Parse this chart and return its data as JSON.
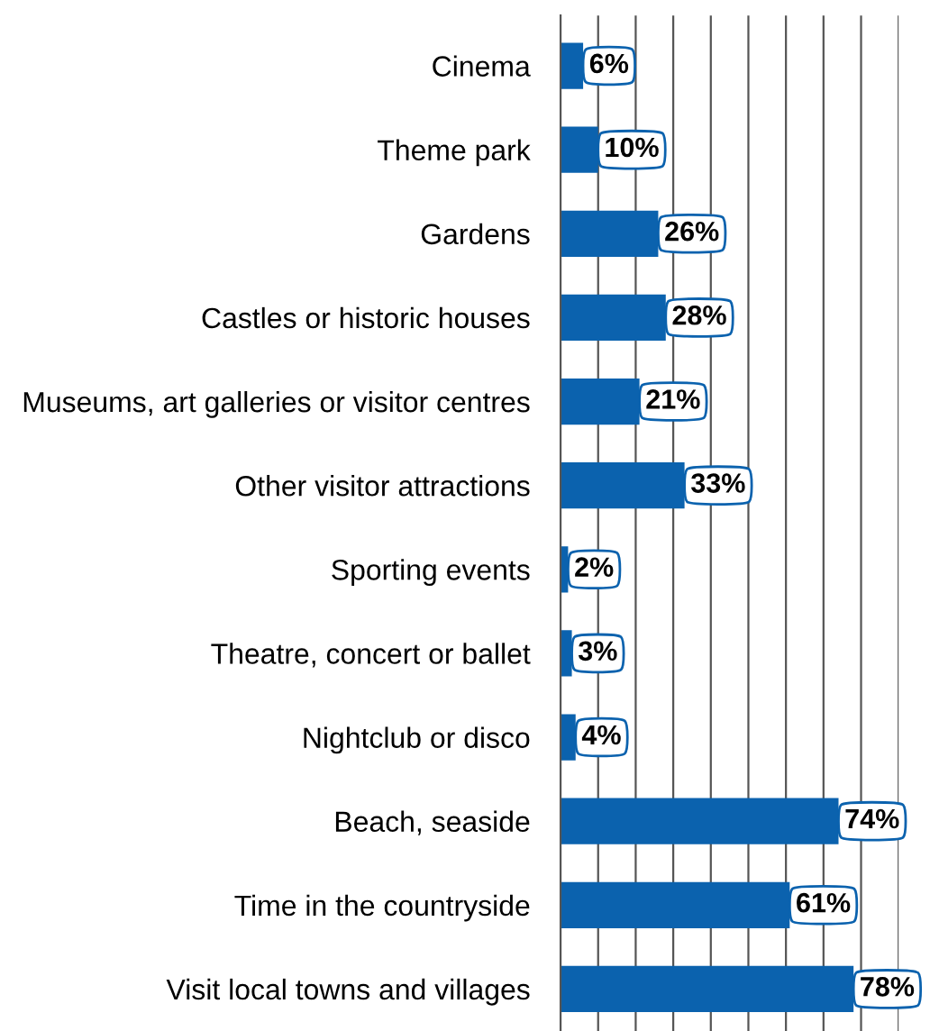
{
  "chart_data": {
    "type": "bar",
    "orientation": "horizontal",
    "categories": [
      "Cinema",
      "Theme park",
      "Gardens",
      "Castles or historic houses",
      "Museums, art galleries or visitor centres",
      "Other visitor attractions",
      "Sporting events",
      "Theatre, concert or ballet",
      "Nightclub or disco",
      "Beach, seaside",
      "Time in the countryside",
      "Visit local towns and villages"
    ],
    "values": [
      6,
      10,
      26,
      28,
      21,
      33,
      2,
      3,
      4,
      74,
      61,
      78
    ],
    "value_labels": [
      "6%",
      "10%",
      "26%",
      "28%",
      "21%",
      "33%",
      "2%",
      "3%",
      "4%",
      "74%",
      "61%",
      "78%"
    ],
    "color": "#0b62ae",
    "xlim": [
      0,
      90
    ],
    "xticks": [
      {
        "value": 10,
        "label": null
      },
      {
        "value": 20,
        "label": null
      },
      {
        "value": 30,
        "label": null
      },
      {
        "value": 40,
        "label": null
      },
      {
        "value": 50,
        "label": null
      },
      {
        "value": 60,
        "label": null
      },
      {
        "value": 70,
        "label": null
      },
      {
        "value": 80,
        "label": null
      },
      {
        "value": 90,
        "label": null
      }
    ],
    "grid": "x",
    "tick_labels": "y"
  }
}
